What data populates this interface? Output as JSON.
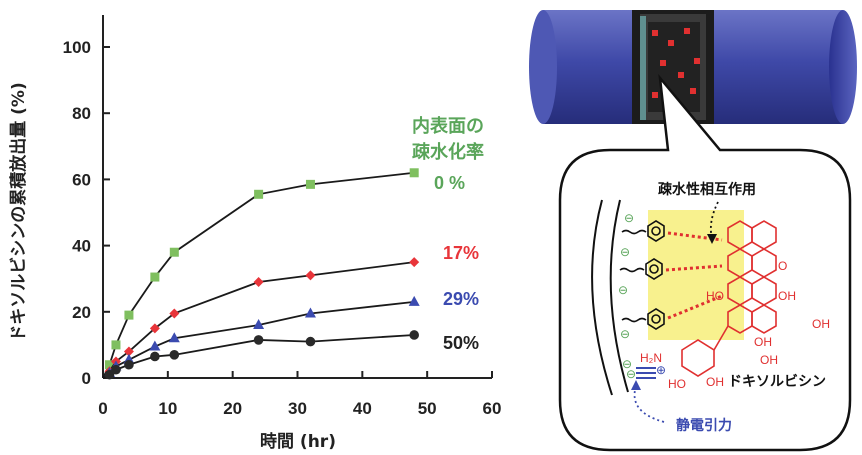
{
  "chart_data": {
    "type": "line",
    "xlabel": "時間 (hr)",
    "ylabel": "ドキソルビシンの累積放出量 (%)",
    "xlim": [
      0,
      60
    ],
    "ylim": [
      0,
      100
    ],
    "xticks": [
      0,
      10,
      20,
      30,
      40,
      50,
      60
    ],
    "yticks": [
      0,
      20,
      40,
      60,
      80,
      100
    ],
    "grid": false,
    "legend_title": [
      "内表面の",
      "疎水化率"
    ],
    "series": [
      {
        "name": "0 %",
        "marker": "square",
        "color": "#7fbf5f",
        "x": [
          0,
          1,
          2,
          4,
          8,
          11,
          24,
          32,
          48
        ],
        "y": [
          0,
          4,
          10,
          19,
          30.5,
          38,
          55.5,
          58.5,
          62
        ]
      },
      {
        "name": "17%",
        "marker": "diamond",
        "color": "#e8353a",
        "x": [
          0,
          1,
          2,
          4,
          8,
          11,
          24,
          32,
          48
        ],
        "y": [
          0,
          2,
          5,
          8,
          15,
          19.5,
          29,
          31,
          35
        ]
      },
      {
        "name": "29%",
        "marker": "triangle",
        "color": "#3b4bb0",
        "x": [
          0,
          1,
          2,
          4,
          8,
          11,
          24,
          32,
          48
        ],
        "y": [
          0,
          1.5,
          3.5,
          5.5,
          9.5,
          12,
          16,
          19.5,
          23
        ]
      },
      {
        "name": "50%",
        "marker": "circle",
        "color": "#2a2a2a",
        "x": [
          0,
          1,
          2,
          4,
          8,
          11,
          24,
          32,
          48
        ],
        "y": [
          0,
          1,
          2.5,
          4,
          6.5,
          7,
          11.5,
          11,
          13
        ]
      }
    ]
  },
  "illustration": {
    "hydrophobic_label": "疎水性相互作用",
    "electrostatic_label": "静電引力",
    "drug_label": "ドキソルビシン",
    "chem_labels": [
      "O",
      "OH",
      "HO",
      "OH",
      "OH",
      "OH",
      "HO",
      "OH"
    ],
    "amine_label": "H₂N",
    "charge_minus": "⊖",
    "charge_plus": "⊕"
  }
}
